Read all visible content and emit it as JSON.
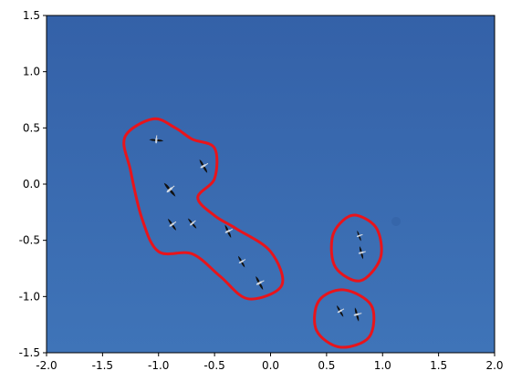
{
  "figure": {
    "colors": {
      "sky_top": "#3461a8",
      "sky_bottom": "#3f74b8",
      "outline": "#e8141b",
      "bird": "#111111",
      "axis": "#000000"
    },
    "axes": {
      "xlim": [
        -2.0,
        2.0
      ],
      "ylim": [
        -1.5,
        1.5
      ],
      "xticks": [
        {
          "value": -2.0,
          "label": "-2.0"
        },
        {
          "value": -1.5,
          "label": "-1.5"
        },
        {
          "value": -1.0,
          "label": "-1.0"
        },
        {
          "value": -0.5,
          "label": "-0.5"
        },
        {
          "value": 0.0,
          "label": "0.0"
        },
        {
          "value": 0.5,
          "label": "0.5"
        },
        {
          "value": 1.0,
          "label": "1.0"
        },
        {
          "value": 1.5,
          "label": "1.5"
        },
        {
          "value": 2.0,
          "label": "2.0"
        }
      ],
      "yticks": [
        {
          "value": 1.5,
          "label": "1.5"
        },
        {
          "value": 1.0,
          "label": "1.0"
        },
        {
          "value": 0.5,
          "label": "0.5"
        },
        {
          "value": 0.0,
          "label": "0.0"
        },
        {
          "value": -0.5,
          "label": "-0.5"
        },
        {
          "value": -1.0,
          "label": "-1.0"
        },
        {
          "value": -1.5,
          "label": "-1.5"
        }
      ],
      "grid": false
    },
    "birds": [
      {
        "x": -1.02,
        "y": 0.39,
        "angle": 5,
        "len": 0.13
      },
      {
        "x": -0.6,
        "y": 0.16,
        "angle": 60,
        "len": 0.14
      },
      {
        "x": -0.9,
        "y": -0.05,
        "angle": 50,
        "len": 0.16
      },
      {
        "x": -0.88,
        "y": -0.36,
        "angle": 55,
        "len": 0.13
      },
      {
        "x": -0.7,
        "y": -0.35,
        "angle": 50,
        "len": 0.12
      },
      {
        "x": -0.38,
        "y": -0.42,
        "angle": 65,
        "len": 0.13
      },
      {
        "x": -0.26,
        "y": -0.69,
        "angle": 60,
        "len": 0.12
      },
      {
        "x": -0.1,
        "y": -0.88,
        "angle": 62,
        "len": 0.14
      },
      {
        "x": 0.79,
        "y": -0.46,
        "angle": 70,
        "len": 0.1
      },
      {
        "x": 0.81,
        "y": -0.61,
        "angle": 75,
        "len": 0.12
      },
      {
        "x": 0.62,
        "y": -1.13,
        "angle": 60,
        "len": 0.12
      },
      {
        "x": 0.77,
        "y": -1.16,
        "angle": 75,
        "len": 0.13
      }
    ],
    "regions": [
      {
        "points": [
          [
            -1.05,
            0.58
          ],
          [
            -1.3,
            0.42
          ],
          [
            -1.25,
            0.12
          ],
          [
            -1.15,
            -0.3
          ],
          [
            -1.0,
            -0.6
          ],
          [
            -0.7,
            -0.62
          ],
          [
            -0.45,
            -0.82
          ],
          [
            -0.2,
            -1.02
          ],
          [
            0.1,
            -0.9
          ],
          [
            0.0,
            -0.6
          ],
          [
            -0.3,
            -0.4
          ],
          [
            -0.5,
            -0.28
          ],
          [
            -0.65,
            -0.12
          ],
          [
            -0.5,
            0.05
          ],
          [
            -0.5,
            0.32
          ],
          [
            -0.7,
            0.4
          ],
          [
            -0.85,
            0.5
          ]
        ]
      },
      {
        "points": [
          [
            0.78,
            -0.28
          ],
          [
            0.95,
            -0.4
          ],
          [
            0.98,
            -0.66
          ],
          [
            0.8,
            -0.86
          ],
          [
            0.58,
            -0.74
          ],
          [
            0.55,
            -0.48
          ],
          [
            0.65,
            -0.32
          ]
        ]
      },
      {
        "points": [
          [
            0.65,
            -0.94
          ],
          [
            0.9,
            -1.08
          ],
          [
            0.88,
            -1.36
          ],
          [
            0.62,
            -1.45
          ],
          [
            0.41,
            -1.3
          ],
          [
            0.43,
            -1.04
          ]
        ]
      }
    ]
  }
}
